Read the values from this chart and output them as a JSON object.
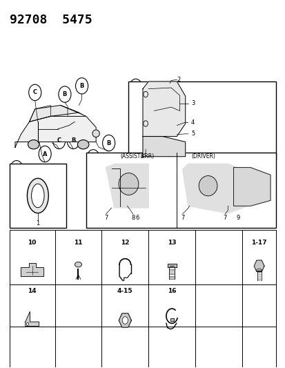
{
  "title": "92708  5475",
  "bg_color": "#ffffff",
  "title_fontsize": 13,
  "title_weight": "bold",
  "fig_width": 4.14,
  "fig_height": 5.33,
  "row1_labels": [
    "10",
    "11",
    "12",
    "13",
    "",
    "1-17"
  ],
  "row2_labels": [
    "14",
    "",
    "4-15",
    "16",
    "",
    ""
  ]
}
